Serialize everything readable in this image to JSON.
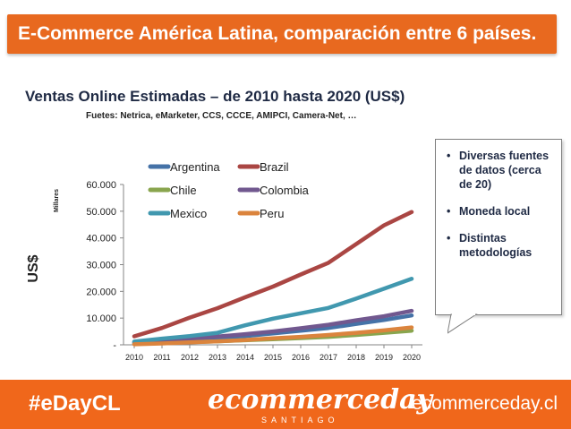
{
  "header": {
    "title": "E-Commerce América Latina, comparación entre 6 países.",
    "bar_color": "#e8691f"
  },
  "callout": {
    "items": [
      "Diversas fuentes de datos (cerca de 20)",
      "Moneda local",
      "Distintas metodologías"
    ]
  },
  "footer": {
    "bg_color": "#f0671b",
    "hashtag": "#eDayCL",
    "logo_text": "ecommerceday",
    "logo_subtext": "SANTIAGO",
    "website": "ecommerceday.cl"
  },
  "chart_data": {
    "type": "line",
    "title": "Ventas Online Estimadas – de 2010 hasta 2020 (US$)",
    "subtitle": "Fuetes: Netrica, eMarketer, CCS, CCCE, AMIPCI, Camera-Net, …",
    "ylabel": "US$",
    "ylabel_units": "Millares",
    "xlabel": "",
    "x": [
      2010,
      2011,
      2012,
      2013,
      2014,
      2015,
      2016,
      2017,
      2018,
      2019,
      2020
    ],
    "ylim": [
      0,
      60000
    ],
    "yticks": [
      0,
      10000,
      20000,
      30000,
      40000,
      50000,
      60000
    ],
    "ytick_labels": [
      "-",
      "10.000",
      "20.000",
      "30.000",
      "40.000",
      "50.000",
      "60.000"
    ],
    "legend_position": "top-center",
    "grid": false,
    "series": [
      {
        "name": "Argentina",
        "color": "#4572a7",
        "values": [
          700,
          1300,
          1900,
          2600,
          3300,
          4300,
          5300,
          6300,
          7800,
          9300,
          11000
        ]
      },
      {
        "name": "Brazil",
        "color": "#aa4643",
        "values": [
          3200,
          6300,
          10200,
          13700,
          17800,
          21800,
          26300,
          30700,
          37700,
          44700,
          49700
        ]
      },
      {
        "name": "Chile",
        "color": "#89a54e",
        "values": [
          400,
          700,
          1000,
          1300,
          1700,
          2100,
          2500,
          3000,
          3700,
          4500,
          5300
        ]
      },
      {
        "name": "Colombia",
        "color": "#71588f",
        "values": [
          1000,
          1600,
          2300,
          3100,
          4000,
          5000,
          6200,
          7500,
          9200,
          10700,
          12700
        ]
      },
      {
        "name": "Mexico",
        "color": "#4198af",
        "values": [
          1200,
          2300,
          3300,
          4500,
          7300,
          9800,
          11800,
          13800,
          17300,
          21000,
          24700
        ]
      },
      {
        "name": "Peru",
        "color": "#db843d",
        "values": [
          200,
          500,
          900,
          1300,
          1800,
          2400,
          3000,
          3700,
          4500,
          5400,
          6500
        ]
      }
    ]
  }
}
